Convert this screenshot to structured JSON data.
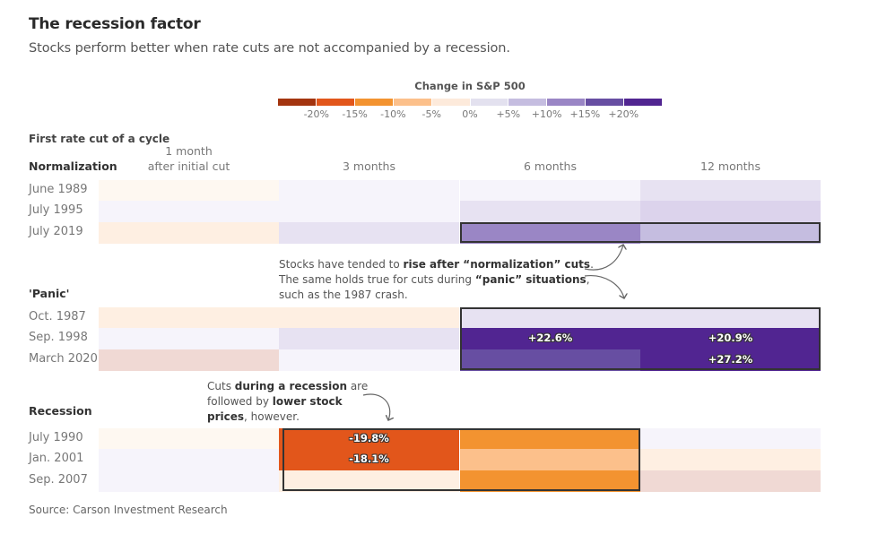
{
  "header": {
    "title": "The recession factor",
    "subtitle": "Stocks perform better when rate cuts are not accompanied by a recession."
  },
  "legend": {
    "title": "Change in S&P 500",
    "bins": [
      {
        "color": "#a3340f"
      },
      {
        "color": "#e2561b"
      },
      {
        "color": "#f39330"
      },
      {
        "color": "#fcc08b"
      },
      {
        "color": "#fdeadb"
      },
      {
        "color": "#e3e1ef"
      },
      {
        "color": "#c5bde0"
      },
      {
        "color": "#9a86c5"
      },
      {
        "color": "#674ea2"
      },
      {
        "color": "#512591"
      }
    ],
    "ticks": [
      "-20%",
      "-15%",
      "-10%",
      "-5%",
      "0%",
      "+5%",
      "+10%",
      "+15%",
      "+20%"
    ]
  },
  "chart_data": {
    "type": "heatmap",
    "title": "The recession factor",
    "subtitle": "Stocks perform better when rate cuts are not accompanied by a recession.",
    "legend_title": "Change in S&P 500",
    "row_group_header": "First rate cut of a cycle",
    "columns": [
      "1 month after initial cut",
      "3 months",
      "6 months",
      "12 months"
    ],
    "column_labels": [
      {
        "line1": "1 month",
        "line2": "after initial cut"
      },
      {
        "line1": "",
        "line2": "3 months"
      },
      {
        "line1": "",
        "line2": "6 months"
      },
      {
        "line1": "",
        "line2": "12 months"
      }
    ],
    "groups": [
      {
        "name": "Normalization",
        "rows": [
          {
            "label": "June 1989",
            "values": [
              -1,
              1,
              1,
              3
            ],
            "labels": [
              "",
              "",
              "",
              ""
            ]
          },
          {
            "label": "July 1995",
            "values": [
              0.5,
              1,
              3,
              5
            ],
            "labels": [
              "",
              "",
              "",
              ""
            ]
          },
          {
            "label": "July 2019",
            "values": [
              -2,
              3,
              12,
              8
            ],
            "labels": [
              "",
              "",
              "",
              ""
            ]
          }
        ],
        "highlight": {
          "rows": [
            2,
            2
          ],
          "cols": [
            2,
            3
          ]
        }
      },
      {
        "name": "'Panic'",
        "rows": [
          {
            "label": "Oct. 1987",
            "values": [
              -2,
              -2,
              3,
              3
            ],
            "labels": [
              "",
              "",
              "",
              ""
            ]
          },
          {
            "label": "Sep. 1998",
            "values": [
              0.5,
              4,
              22.6,
              20.9
            ],
            "labels": [
              "",
              "",
              "+22.6%",
              "+20.9%"
            ]
          },
          {
            "label": "March 2020",
            "values": [
              -3,
              0.5,
              16,
              27.2
            ],
            "labels": [
              "",
              "",
              "",
              "+27.2%"
            ]
          }
        ],
        "highlight": {
          "rows": [
            0,
            2
          ],
          "cols": [
            2,
            3
          ]
        }
      },
      {
        "name": "Recession",
        "rows": [
          {
            "label": "July 1990",
            "values": [
              -1,
              -19.8,
              -12,
              0.5
            ],
            "labels": [
              "",
              "-19.8%",
              "",
              ""
            ]
          },
          {
            "label": "Jan. 2001",
            "values": [
              0.5,
              -18.1,
              -7,
              -2
            ],
            "labels": [
              "",
              "-18.1%",
              "",
              ""
            ]
          },
          {
            "label": "Sep. 2007",
            "values": [
              0.5,
              -2,
              -12,
              -3
            ],
            "labels": [
              "",
              "",
              "",
              ""
            ]
          }
        ],
        "highlight": {
          "rows": [
            0,
            2
          ],
          "cols": [
            1,
            2
          ]
        }
      }
    ],
    "annotations": [
      {
        "text_parts": [
          {
            "t": "Stocks have tended to ",
            "b": false
          },
          {
            "t": "rise after “normalization” cuts",
            "b": true
          },
          {
            "t": ".",
            "b": false
          },
          {
            "br": true
          },
          {
            "t": "The same holds true for cuts during ",
            "b": false
          },
          {
            "t": "“panic” situations",
            "b": true
          },
          {
            "t": ",",
            "b": false
          },
          {
            "br": true
          },
          {
            "t": "such as the 1987 crash.",
            "b": false
          }
        ]
      },
      {
        "text_parts": [
          {
            "t": "Cuts ",
            "b": false
          },
          {
            "t": "during a recession",
            "b": true
          },
          {
            "t": " are",
            "b": false
          },
          {
            "br": true
          },
          {
            "t": "followed by ",
            "b": false
          },
          {
            "t": "lower stock",
            "b": true
          },
          {
            "br": true
          },
          {
            "t": "prices",
            "b": true
          },
          {
            "t": ", however.",
            "b": false
          }
        ]
      }
    ],
    "source": "Source: Carson Investment Research"
  },
  "footer": {
    "source": "Source: Carson Investment Research"
  }
}
